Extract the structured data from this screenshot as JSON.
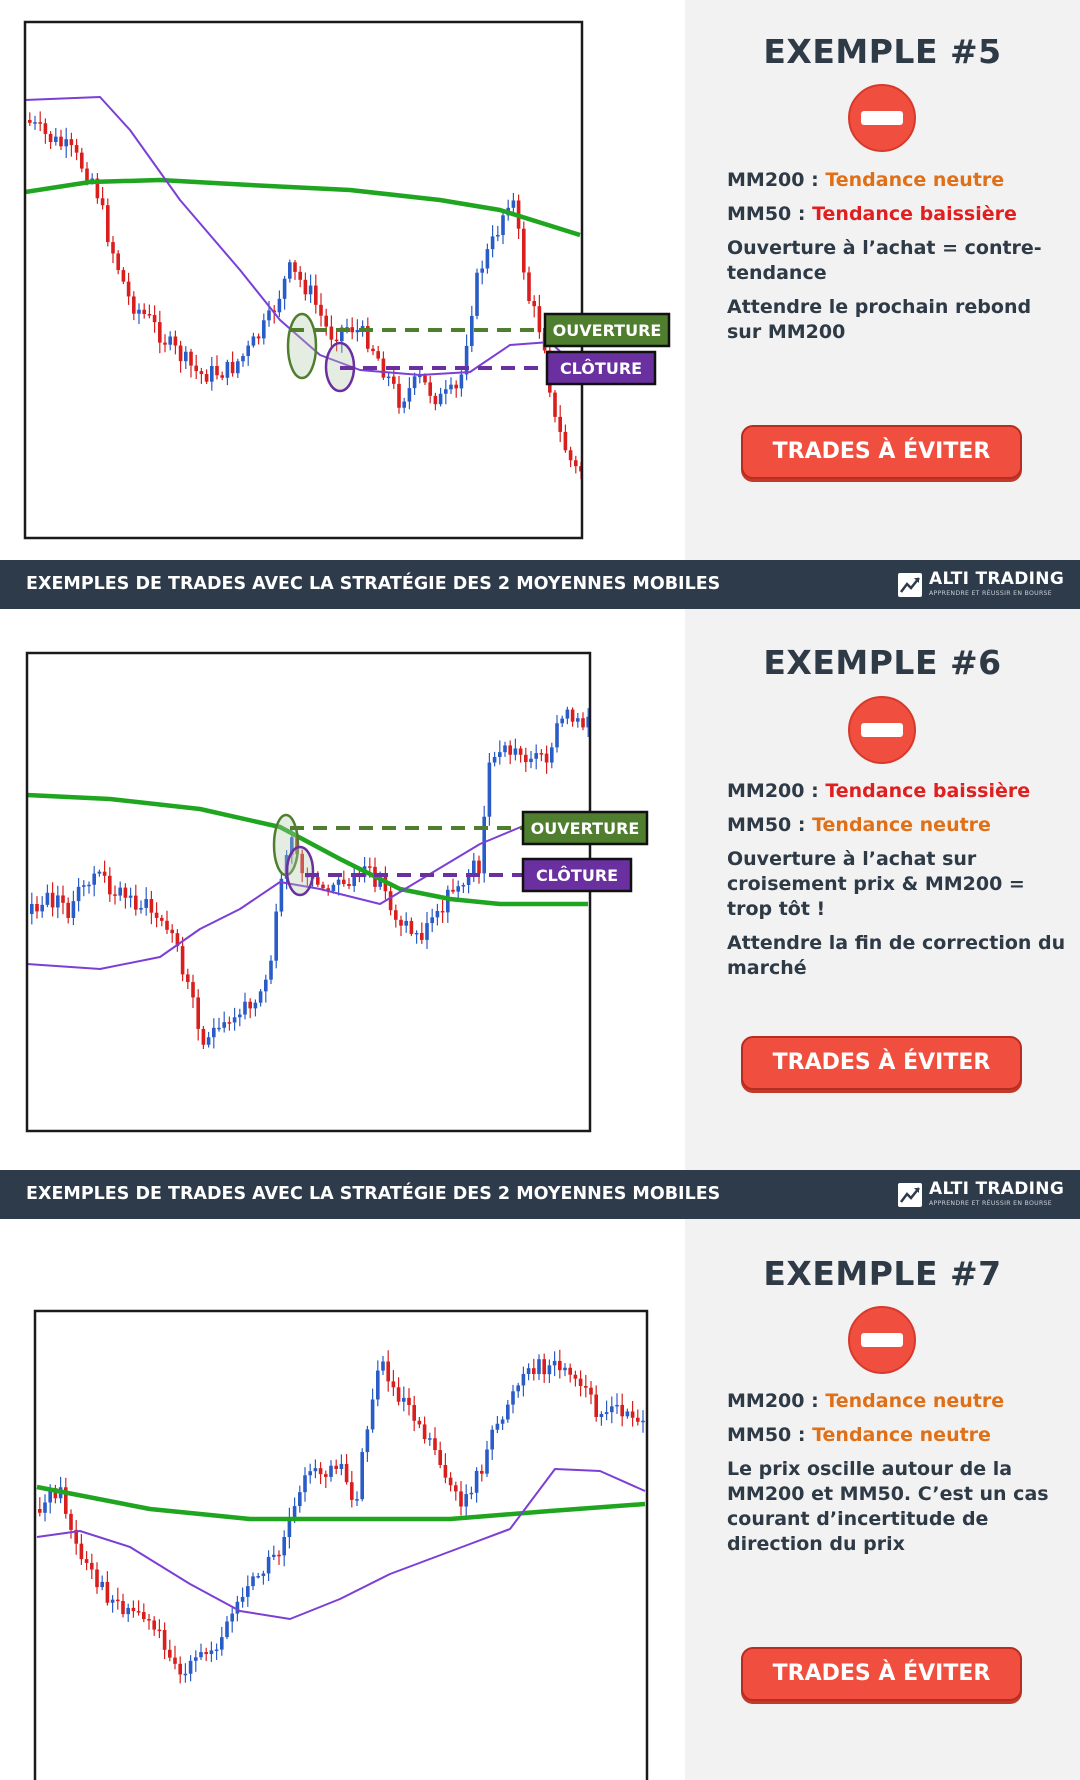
{
  "sections": [
    {
      "title": "EXEMPLE #5",
      "lines": [
        {
          "label": "MM200 :",
          "value": "Tendance neutre",
          "color": "#e07018"
        },
        {
          "label": "MM50 :",
          "value": "Tendance baissière",
          "color": "#e02020"
        }
      ],
      "notes": [
        "Ouverture à l’achat = contre-tendance",
        "Attendre le prochain rebond sur MM200"
      ],
      "button": "TRADES À ÉVITER",
      "chart_data": {
        "type": "candlestick",
        "series": [
          {
            "name": "MM200",
            "color": "#1fa51f"
          },
          {
            "name": "MM50",
            "color": "#7b3fd6"
          }
        ],
        "annotations": [
          {
            "label": "OUVERTURE",
            "color": "#4e7e2e"
          },
          {
            "label": "CLÔTURE",
            "color": "#6a30a0"
          }
        ],
        "candle_colors": {
          "up": "#2a5cc8",
          "down": "#d91e1e"
        }
      }
    },
    {
      "title": "EXEMPLE #6",
      "lines": [
        {
          "label": "MM200 :",
          "value": "Tendance baissière",
          "color": "#e02020"
        },
        {
          "label": "MM50 :",
          "value": "Tendance neutre",
          "color": "#e07018"
        }
      ],
      "notes": [
        "Ouverture à l’achat sur croisement prix & MM200 = trop tôt !",
        "Attendre la fin de correction du marché"
      ],
      "button": "TRADES À ÉVITER",
      "chart_data": {
        "type": "candlestick",
        "series": [
          {
            "name": "MM200",
            "color": "#1fa51f"
          },
          {
            "name": "MM50",
            "color": "#7b3fd6"
          }
        ],
        "annotations": [
          {
            "label": "OUVERTURE",
            "color": "#4e7e2e"
          },
          {
            "label": "CLÔTURE",
            "color": "#6a30a0"
          }
        ],
        "candle_colors": {
          "up": "#2a5cc8",
          "down": "#d91e1e"
        }
      }
    },
    {
      "title": "EXEMPLE #7",
      "lines": [
        {
          "label": "MM200 :",
          "value": "Tendance neutre",
          "color": "#e07018"
        },
        {
          "label": "MM50 :",
          "value": "Tendance neutre",
          "color": "#e07018"
        }
      ],
      "notes": [
        "Le prix oscille autour de la MM200 et MM50. C’est un cas courant d’incertitude de direction du prix"
      ],
      "button": "TRADES À ÉVITER",
      "chart_data": {
        "type": "candlestick",
        "series": [
          {
            "name": "MM200",
            "color": "#1fa51f"
          },
          {
            "name": "MM50",
            "color": "#7b3fd6"
          }
        ],
        "annotations": [],
        "candle_colors": {
          "up": "#2a5cc8",
          "down": "#d91e1e"
        }
      }
    }
  ],
  "banner": {
    "text": "EXEMPLES DE TRADES AVEC LA STRATÉGIE DES 2 MOYENNES MOBILES",
    "brand_name": "ALTI TRADING",
    "brand_tagline": "APPRENDRE ET RÉUSSIR EN BOURSE"
  },
  "icons": {
    "no_entry": "no-entry-icon",
    "logo": "chart-logo-icon"
  }
}
